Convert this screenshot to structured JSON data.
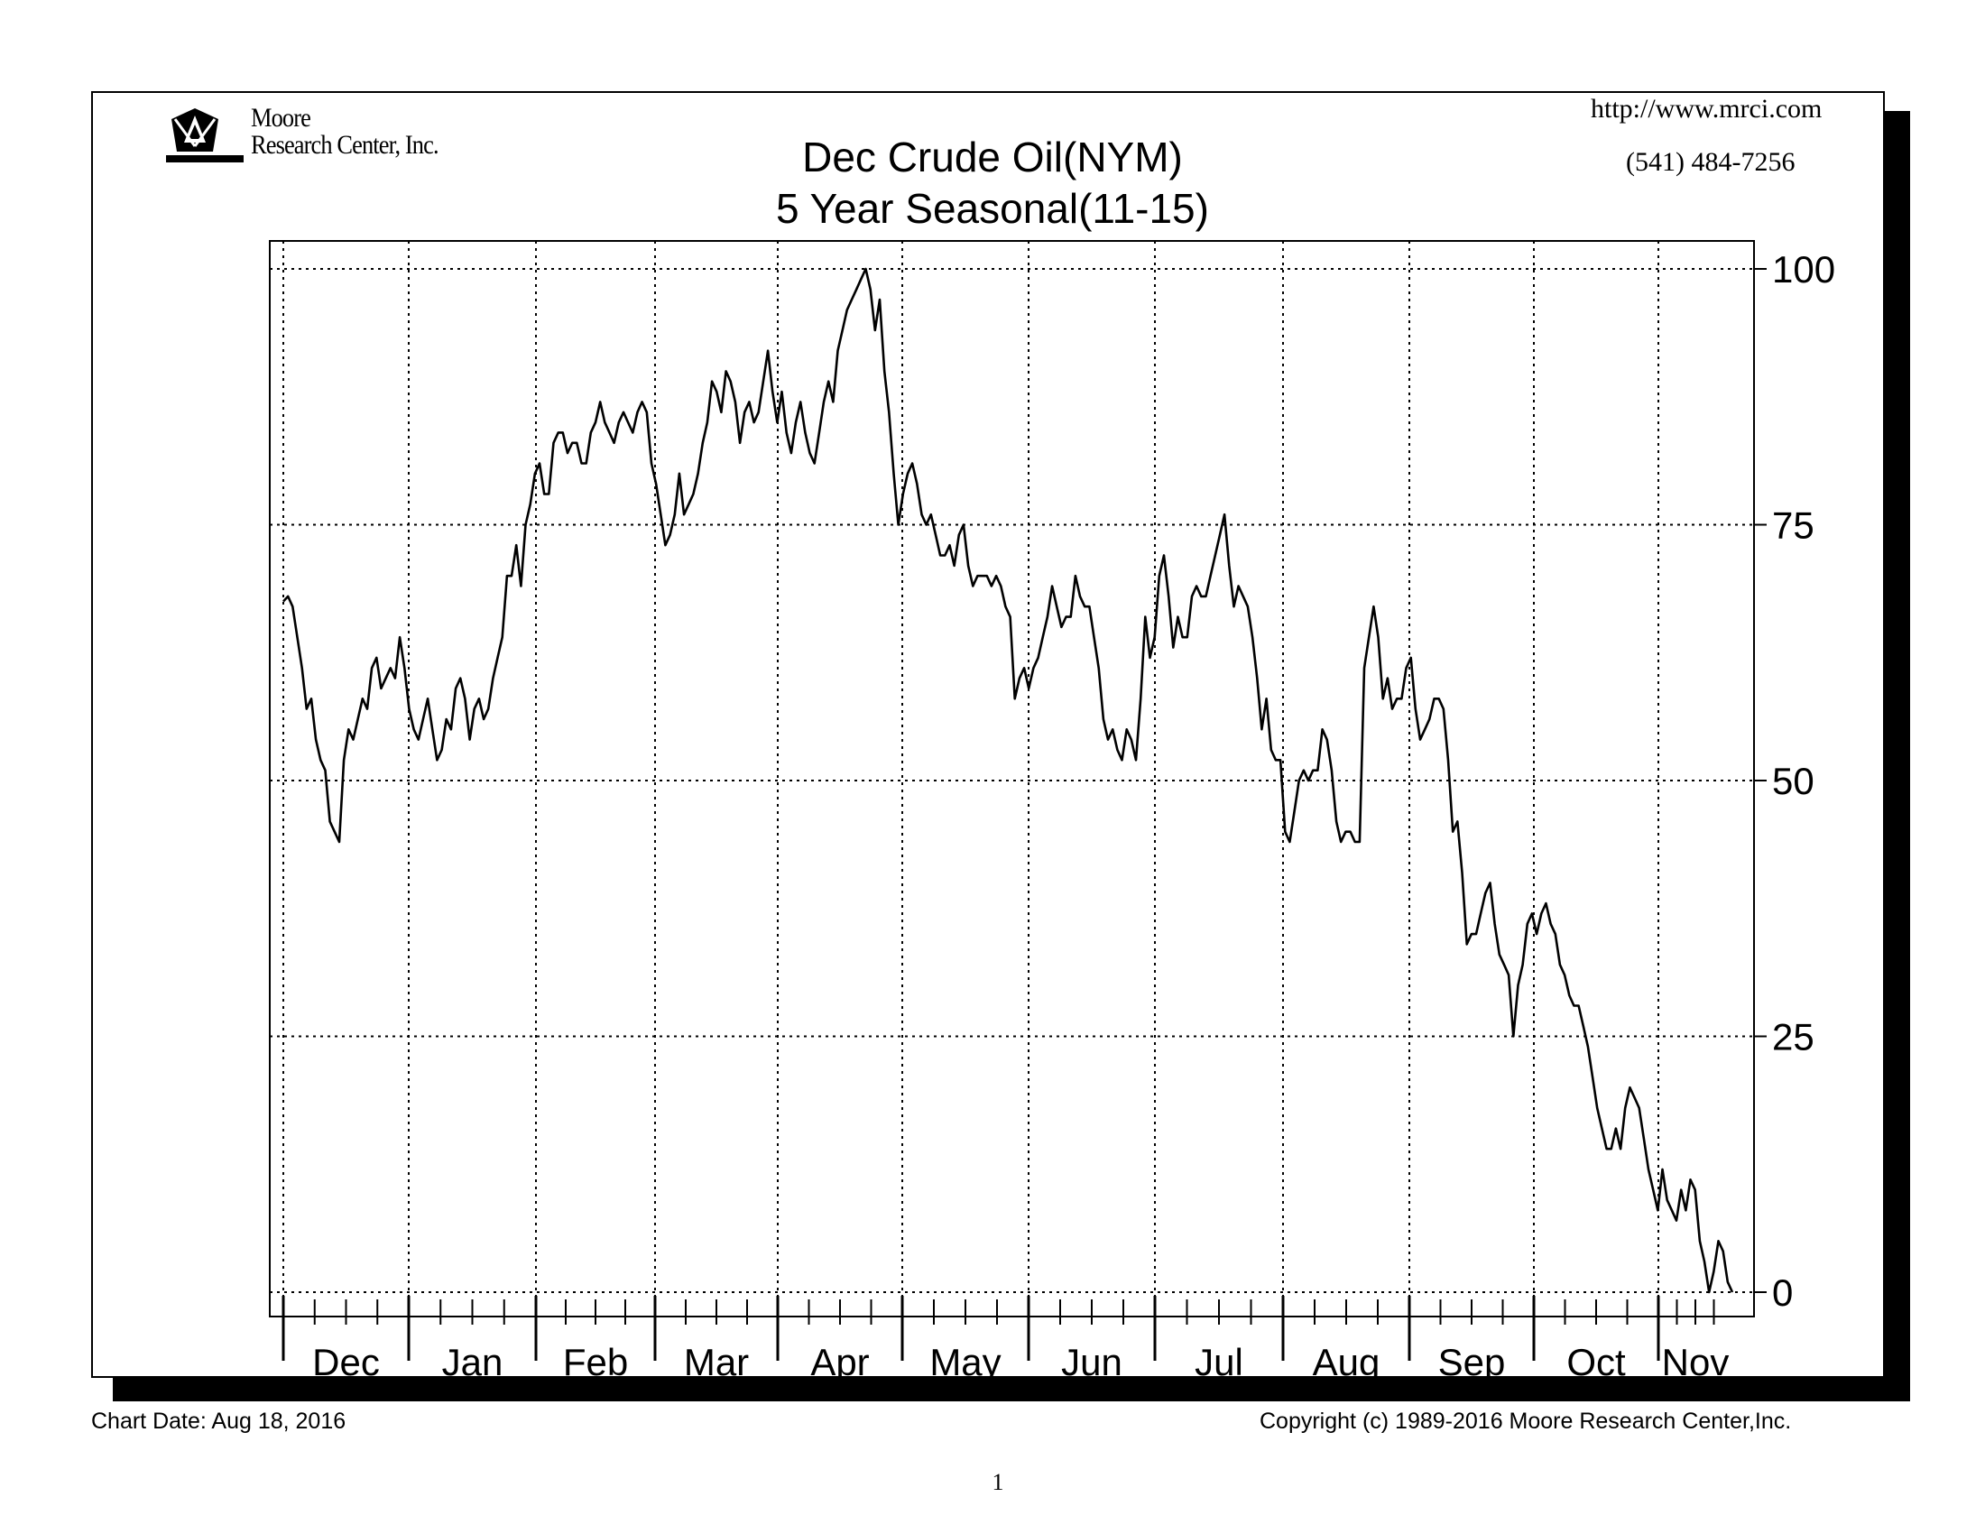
{
  "header": {
    "company_line1": "Moore",
    "company_line2": "Research Center, Inc.",
    "url": "http://www.mrci.com",
    "phone": "(541) 484-7256"
  },
  "footer": {
    "chart_date": "Chart Date: Aug 18, 2016",
    "copyright": "Copyright (c) 1989-2016 Moore Research Center,Inc.",
    "page_number": "1"
  },
  "chart_data": {
    "type": "line",
    "title": "Dec Crude Oil(NYM)",
    "subtitle": "5 Year Seasonal(11-15)",
    "xlabel": "",
    "ylabel": "",
    "ylim": [
      0,
      100
    ],
    "yticks": [
      "0",
      "25",
      "50",
      "75",
      "100"
    ],
    "y_axis_position": "right",
    "grid": true,
    "months": [
      "Dec",
      "Jan",
      "Feb",
      "Mar",
      "Apr",
      "May",
      "Jun",
      "Jul",
      "Aug",
      "Sep",
      "Oct",
      "Nov"
    ],
    "series": [
      {
        "values": [
          67.5,
          68,
          67,
          64,
          61,
          57,
          58,
          54,
          52,
          51,
          46,
          45,
          44,
          52,
          55,
          54,
          56,
          58,
          57,
          61,
          62,
          59,
          60,
          61,
          60,
          64,
          61,
          57,
          55,
          54,
          56,
          58,
          55,
          52,
          53,
          56,
          55,
          59,
          60,
          58,
          54,
          57,
          58,
          56,
          57,
          60,
          62,
          64,
          70,
          70,
          73,
          69,
          75,
          77,
          80,
          81,
          78,
          78,
          83,
          84,
          84,
          82,
          83,
          83,
          81,
          81,
          84,
          85,
          87,
          85,
          84,
          83,
          85,
          86,
          85,
          84,
          86,
          87,
          86,
          81,
          79,
          76,
          73,
          74,
          76,
          80,
          76,
          77,
          78,
          80,
          83,
          85,
          89,
          88,
          86,
          90,
          89,
          87,
          83,
          86,
          87,
          85,
          86,
          89,
          92,
          88,
          85,
          88,
          84,
          82,
          85,
          87,
          84,
          82,
          81,
          84,
          87,
          89,
          87,
          92,
          94,
          96,
          97,
          98,
          99,
          100,
          98,
          94,
          97,
          90,
          86,
          80,
          75,
          78,
          80,
          81,
          79,
          76,
          75,
          76,
          74,
          72,
          72,
          73,
          71,
          74,
          75,
          71,
          69,
          70,
          70,
          70,
          69,
          70,
          69,
          67,
          66,
          58,
          60,
          61,
          59,
          61,
          62,
          64,
          66,
          69,
          67,
          65,
          66,
          66,
          70,
          68,
          67,
          67,
          64,
          61,
          56,
          54,
          55,
          53,
          52,
          55,
          54,
          52,
          58,
          66,
          62,
          64,
          70,
          72,
          68,
          63,
          66,
          64,
          64,
          68,
          69,
          68,
          68,
          70,
          72,
          74,
          76,
          71,
          67,
          69,
          68,
          67,
          64,
          60,
          55,
          58,
          53,
          52,
          52,
          45,
          44,
          47,
          50,
          51,
          50,
          51,
          51,
          55,
          54,
          51,
          46,
          44,
          45,
          45,
          44,
          44,
          61,
          64,
          67,
          64,
          58,
          60,
          57,
          58,
          58,
          61,
          62,
          57,
          54,
          55,
          56,
          58,
          58,
          57,
          52,
          45,
          46,
          41,
          34,
          35,
          35,
          37,
          39,
          40,
          36,
          33,
          32,
          31,
          25,
          30,
          32,
          36,
          37,
          35,
          37,
          38,
          36,
          35,
          32,
          31,
          29,
          28,
          28,
          26,
          24,
          21,
          18,
          16,
          14,
          14,
          16,
          14,
          18,
          20,
          19,
          18,
          15,
          12,
          10,
          8,
          12,
          9,
          8,
          7,
          10,
          8,
          11,
          10,
          5,
          3,
          0,
          2,
          5,
          4,
          1,
          0
        ]
      }
    ]
  }
}
